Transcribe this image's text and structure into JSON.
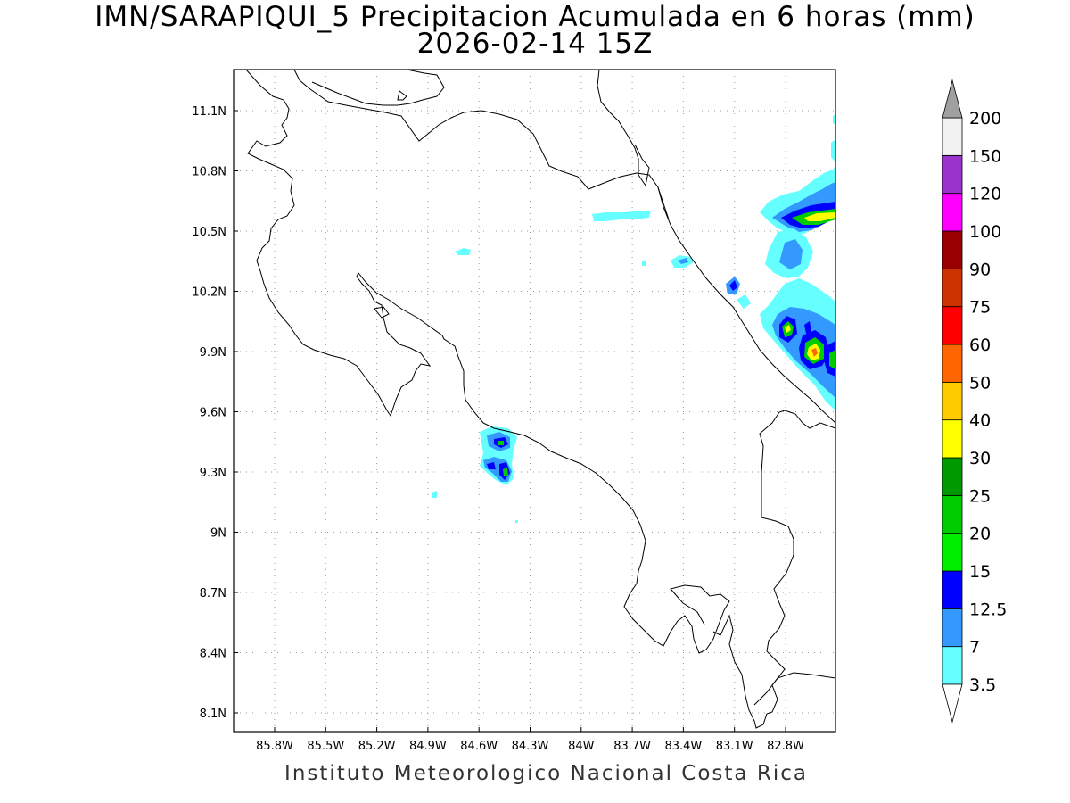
{
  "title": "IMN/SARAPIQUI_5 Precipitacion Acumulada en 6 horas (mm)",
  "subtitle": "2026-02-14 15Z",
  "footer": "Instituto Meteorologico Nacional Costa Rica",
  "map": {
    "lon_range": [
      -86.05,
      -82.45
    ],
    "lat_range": [
      8.0,
      11.3
    ],
    "lon_ticks": [
      "85.8W",
      "85.5W",
      "85.2W",
      "84.9W",
      "84.6W",
      "84.3W",
      "84W",
      "83.7W",
      "83.4W",
      "83.1W",
      "82.8W"
    ],
    "lat_ticks": [
      "11.1N",
      "10.8N",
      "10.5N",
      "10.2N",
      "9.9N",
      "9.6N",
      "9.3N",
      "9N",
      "8.7N",
      "8.4N",
      "8.1N"
    ],
    "grid": "dotted"
  },
  "colorbar": {
    "levels": [
      "3.5",
      "7",
      "12.5",
      "15",
      "20",
      "25",
      "30",
      "40",
      "50",
      "60",
      "75",
      "90",
      "100",
      "120",
      "150",
      "200"
    ],
    "colors": [
      "#66ffff",
      "#3399ff",
      "#0000ff",
      "#00ee00",
      "#00cc00",
      "#009900",
      "#ffff00",
      "#ffcc00",
      "#ff6600",
      "#ff0000",
      "#cc3300",
      "#990000",
      "#ff00ff",
      "#9933cc",
      "#f2f2f2"
    ],
    "over_color": "#a0a0a0",
    "under_color": "#ffffff"
  }
}
